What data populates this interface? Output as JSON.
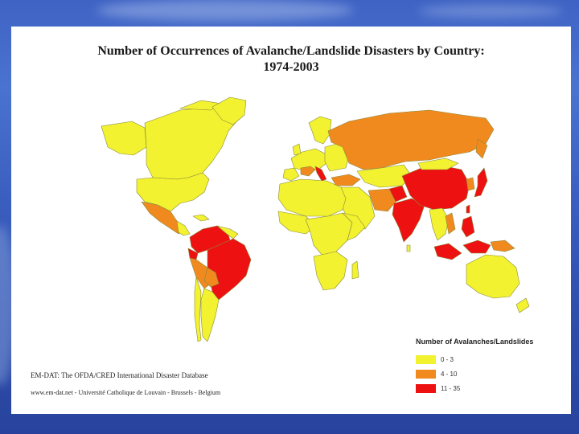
{
  "title_line1": "Number of Occurrences of Avalanche/Landslide Disasters by Country:",
  "title_line2": "1974-2003",
  "legend": {
    "title": "Number of Avalanches/Landslides",
    "items": [
      {
        "label": "0 - 3",
        "color": "#f2f230"
      },
      {
        "label": "4 - 10",
        "color": "#f08a1e"
      },
      {
        "label": "11 - 35",
        "color": "#ee1111"
      }
    ]
  },
  "source_line1": "EM-DAT: The OFDA/CRED International Disaster Database",
  "source_line2": "www.em-dat.net - Université Catholique de Louvain - Brussels - Belgium",
  "colors": {
    "background": "#3b5fc0",
    "panel": "#ffffff",
    "border": "#8a8a40"
  }
}
